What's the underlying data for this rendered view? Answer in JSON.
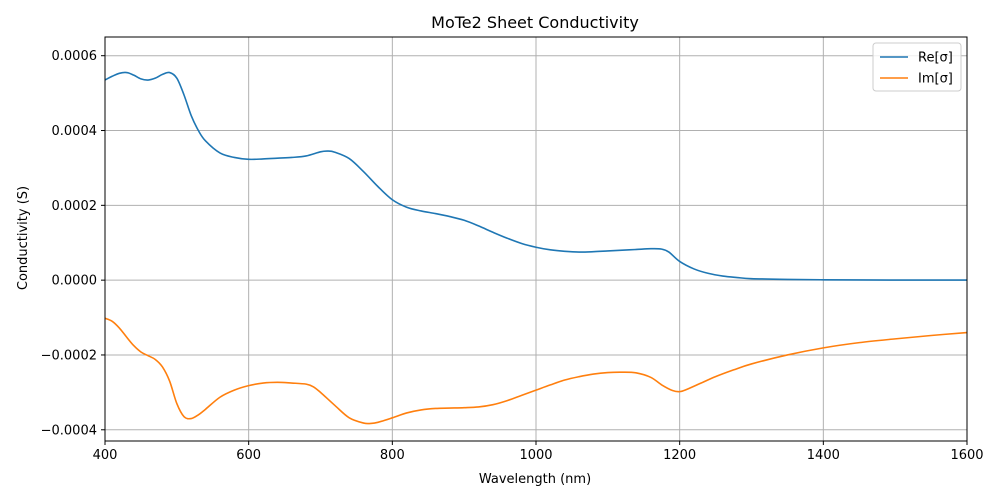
{
  "chart_data": {
    "type": "line",
    "title": "MoTe2 Sheet Conductivity",
    "xlabel": "Wavelength (nm)",
    "ylabel": "Conductivity (S)",
    "xlim": [
      400,
      1600
    ],
    "ylim": [
      -0.00043,
      0.00065
    ],
    "x_ticks": [
      400,
      600,
      800,
      1000,
      1200,
      1400,
      1600
    ],
    "x_tick_labels": [
      "400",
      "600",
      "800",
      "1000",
      "1200",
      "1400",
      "1600"
    ],
    "y_ticks": [
      -0.0004,
      -0.0002,
      0.0,
      0.0002,
      0.0004,
      0.0006
    ],
    "y_tick_labels": [
      "−0.0004",
      "−0.0002",
      "0.0000",
      "0.0002",
      "0.0004",
      "0.0006"
    ],
    "grid": true,
    "legend_position": "top-right",
    "series": [
      {
        "name": "Re[σ]",
        "color": "#1f77b4",
        "x": [
          400,
          410,
          420,
          430,
          440,
          450,
          460,
          470,
          480,
          490,
          500,
          510,
          520,
          530,
          540,
          560,
          580,
          600,
          620,
          640,
          660,
          680,
          700,
          710,
          720,
          740,
          760,
          780,
          800,
          820,
          840,
          860,
          880,
          900,
          920,
          940,
          960,
          980,
          1000,
          1020,
          1040,
          1060,
          1080,
          1100,
          1120,
          1140,
          1160,
          1175,
          1185,
          1200,
          1220,
          1240,
          1260,
          1280,
          1300,
          1350,
          1400,
          1450,
          1500,
          1550,
          1600
        ],
        "y": [
          0.000535,
          0.000545,
          0.000553,
          0.000555,
          0.000548,
          0.000538,
          0.000535,
          0.00054,
          0.00055,
          0.000555,
          0.00054,
          0.000495,
          0.00044,
          0.0004,
          0.000372,
          0.00034,
          0.000328,
          0.000323,
          0.000324,
          0.000326,
          0.000328,
          0.000332,
          0.000343,
          0.000345,
          0.000342,
          0.000325,
          0.00029,
          0.00025,
          0.000215,
          0.000195,
          0.000185,
          0.000178,
          0.00017,
          0.00016,
          0.000145,
          0.000128,
          0.000112,
          9.8e-05,
          8.8e-05,
          8.1e-05,
          7.7e-05,
          7.5e-05,
          7.6e-05,
          7.8e-05,
          8e-05,
          8.2e-05,
          8.4e-05,
          8.3e-05,
          7.5e-05,
          5e-05,
          3e-05,
          1.8e-05,
          1.1e-05,
          7e-06,
          4e-06,
          2e-06,
          1e-06,
          5e-07,
          3e-07,
          2e-07,
          1e-07
        ]
      },
      {
        "name": "Im[σ]",
        "color": "#ff7f0e",
        "x": [
          400,
          410,
          420,
          430,
          440,
          450,
          460,
          470,
          480,
          490,
          500,
          510,
          520,
          530,
          540,
          560,
          580,
          600,
          620,
          640,
          660,
          680,
          690,
          700,
          720,
          740,
          760,
          770,
          780,
          800,
          820,
          840,
          860,
          880,
          900,
          920,
          940,
          960,
          980,
          1000,
          1020,
          1040,
          1060,
          1080,
          1100,
          1120,
          1140,
          1160,
          1175,
          1190,
          1200,
          1210,
          1230,
          1250,
          1275,
          1300,
          1350,
          1400,
          1450,
          1500,
          1550,
          1600
        ],
        "y": [
          -0.000102,
          -0.00011,
          -0.000128,
          -0.000152,
          -0.000175,
          -0.000192,
          -0.000202,
          -0.000212,
          -0.000232,
          -0.00027,
          -0.00033,
          -0.000365,
          -0.00037,
          -0.00036,
          -0.000345,
          -0.000313,
          -0.000294,
          -0.000282,
          -0.000275,
          -0.000273,
          -0.000275,
          -0.000278,
          -0.000285,
          -0.0003,
          -0.000335,
          -0.000368,
          -0.000382,
          -0.000383,
          -0.00038,
          -0.000368,
          -0.000355,
          -0.000347,
          -0.000343,
          -0.000342,
          -0.000341,
          -0.000339,
          -0.000333,
          -0.000322,
          -0.000308,
          -0.000294,
          -0.00028,
          -0.000267,
          -0.000258,
          -0.000251,
          -0.000247,
          -0.000246,
          -0.000248,
          -0.00026,
          -0.00028,
          -0.000295,
          -0.000298,
          -0.000292,
          -0.000275,
          -0.000258,
          -0.00024,
          -0.000224,
          -0.0002,
          -0.000181,
          -0.000167,
          -0.000157,
          -0.000148,
          -0.00014
        ]
      }
    ]
  }
}
